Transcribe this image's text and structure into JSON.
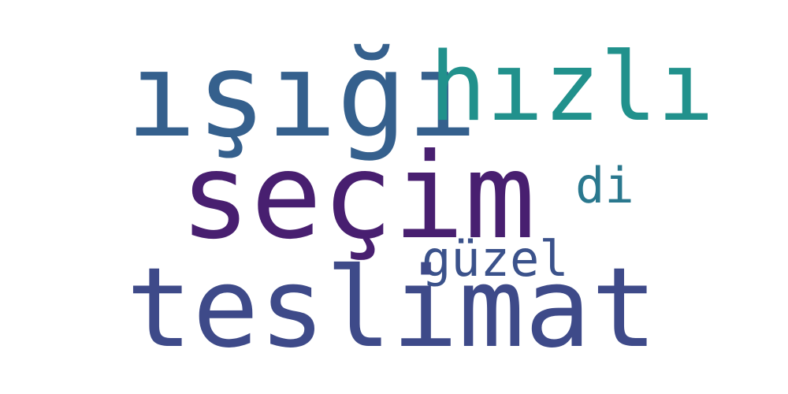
{
  "words": [
    {
      "text": "ışığı",
      "color": "#35608d"
    },
    {
      "text": "hızlı",
      "color": "#21918c"
    },
    {
      "text": "seçim",
      "color": "#481f70"
    },
    {
      "text": "di",
      "color": "#2a788e"
    },
    {
      "text": "güzel",
      "color": "#3b528b"
    },
    {
      "text": "teslimat",
      "color": "#3e4a89"
    }
  ]
}
